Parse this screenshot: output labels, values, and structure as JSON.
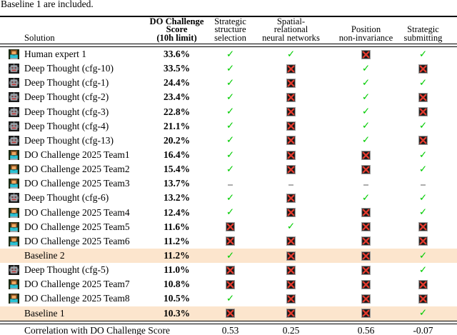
{
  "caption": "Baseline 1 are included.",
  "colors": {
    "highlight_row": "#fce5cd",
    "check_green": "#00cc00",
    "cross_red": "#e03a2a",
    "rule_black": "#000000"
  },
  "glyphs": {
    "check": "✓",
    "dash": "–"
  },
  "icons": {
    "human": "woman-technologist-icon",
    "robot": "robot-icon"
  },
  "table": {
    "columns": {
      "solution": "Solution",
      "score": "DO Challenge\nScore\n(10h limit)",
      "c1": "Strategic\nstructure\nselection",
      "c2": "Spatial-\nrelational\nneural networks",
      "c3": "Position\nnon-invariance",
      "c4": "Strategic\nsubmitting"
    },
    "rows": [
      {
        "icon": "human",
        "name": "Human expert 1",
        "score": "33.6%",
        "marks": [
          "check",
          "check",
          "cross",
          "check"
        ],
        "highlight": false
      },
      {
        "icon": "robot",
        "name": "Deep Thought (cfg-10)",
        "score": "33.5%",
        "marks": [
          "check",
          "cross",
          "check",
          "cross"
        ],
        "highlight": false
      },
      {
        "icon": "robot",
        "name": "Deep Thought (cfg-1)",
        "score": "24.4%",
        "marks": [
          "check",
          "cross",
          "check",
          "check"
        ],
        "highlight": false
      },
      {
        "icon": "robot",
        "name": "Deep Thought (cfg-2)",
        "score": "23.4%",
        "marks": [
          "check",
          "cross",
          "check",
          "cross"
        ],
        "highlight": false
      },
      {
        "icon": "robot",
        "name": "Deep Thought (cfg-3)",
        "score": "22.8%",
        "marks": [
          "check",
          "cross",
          "check",
          "cross"
        ],
        "highlight": false
      },
      {
        "icon": "robot",
        "name": "Deep Thought (cfg-4)",
        "score": "21.1%",
        "marks": [
          "check",
          "cross",
          "check",
          "check"
        ],
        "highlight": false
      },
      {
        "icon": "robot",
        "name": "Deep Thought (cfg-13)",
        "score": "20.2%",
        "marks": [
          "check",
          "cross",
          "check",
          "cross"
        ],
        "highlight": false
      },
      {
        "icon": "human",
        "name": "DO Challenge 2025 Team1",
        "score": "16.4%",
        "marks": [
          "check",
          "cross",
          "cross",
          "check"
        ],
        "highlight": false
      },
      {
        "icon": "human",
        "name": "DO Challenge 2025 Team2",
        "score": "15.4%",
        "marks": [
          "check",
          "cross",
          "cross",
          "check"
        ],
        "highlight": false
      },
      {
        "icon": "human",
        "name": "DO Challenge 2025 Team3",
        "score": "13.7%",
        "marks": [
          "dash",
          "dash",
          "dash",
          "dash"
        ],
        "highlight": false
      },
      {
        "icon": "robot",
        "name": "Deep Thought (cfg-6)",
        "score": "13.2%",
        "marks": [
          "check",
          "cross",
          "check",
          "check"
        ],
        "highlight": false
      },
      {
        "icon": "human",
        "name": "DO Challenge 2025 Team4",
        "score": "12.4%",
        "marks": [
          "check",
          "cross",
          "cross",
          "check"
        ],
        "highlight": false
      },
      {
        "icon": "human",
        "name": "DO Challenge 2025 Team5",
        "score": "11.6%",
        "marks": [
          "cross",
          "check",
          "cross",
          "cross"
        ],
        "highlight": false
      },
      {
        "icon": "human",
        "name": "DO Challenge 2025 Team6",
        "score": "11.2%",
        "marks": [
          "cross",
          "cross",
          "cross",
          "cross"
        ],
        "highlight": false
      },
      {
        "icon": "none",
        "name": "Baseline 2",
        "score": "11.2%",
        "marks": [
          "check",
          "cross",
          "cross",
          "check"
        ],
        "highlight": true
      },
      {
        "icon": "robot",
        "name": "Deep Thought (cfg-5)",
        "score": "11.0%",
        "marks": [
          "cross",
          "cross",
          "cross",
          "check"
        ],
        "highlight": false
      },
      {
        "icon": "human",
        "name": "DO Challenge 2025 Team7",
        "score": "10.8%",
        "marks": [
          "cross",
          "cross",
          "cross",
          "cross"
        ],
        "highlight": false
      },
      {
        "icon": "human",
        "name": "DO Challenge 2025 Team8",
        "score": "10.5%",
        "marks": [
          "check",
          "cross",
          "cross",
          "cross"
        ],
        "highlight": false
      },
      {
        "icon": "none",
        "name": "Baseline 1",
        "score": "10.3%",
        "marks": [
          "cross",
          "cross",
          "cross",
          "check"
        ],
        "highlight": true
      }
    ],
    "footer": {
      "label": "Correlation with DO Challenge Score",
      "values": [
        "0.53",
        "0.25",
        "0.56",
        "-0.07"
      ]
    }
  }
}
